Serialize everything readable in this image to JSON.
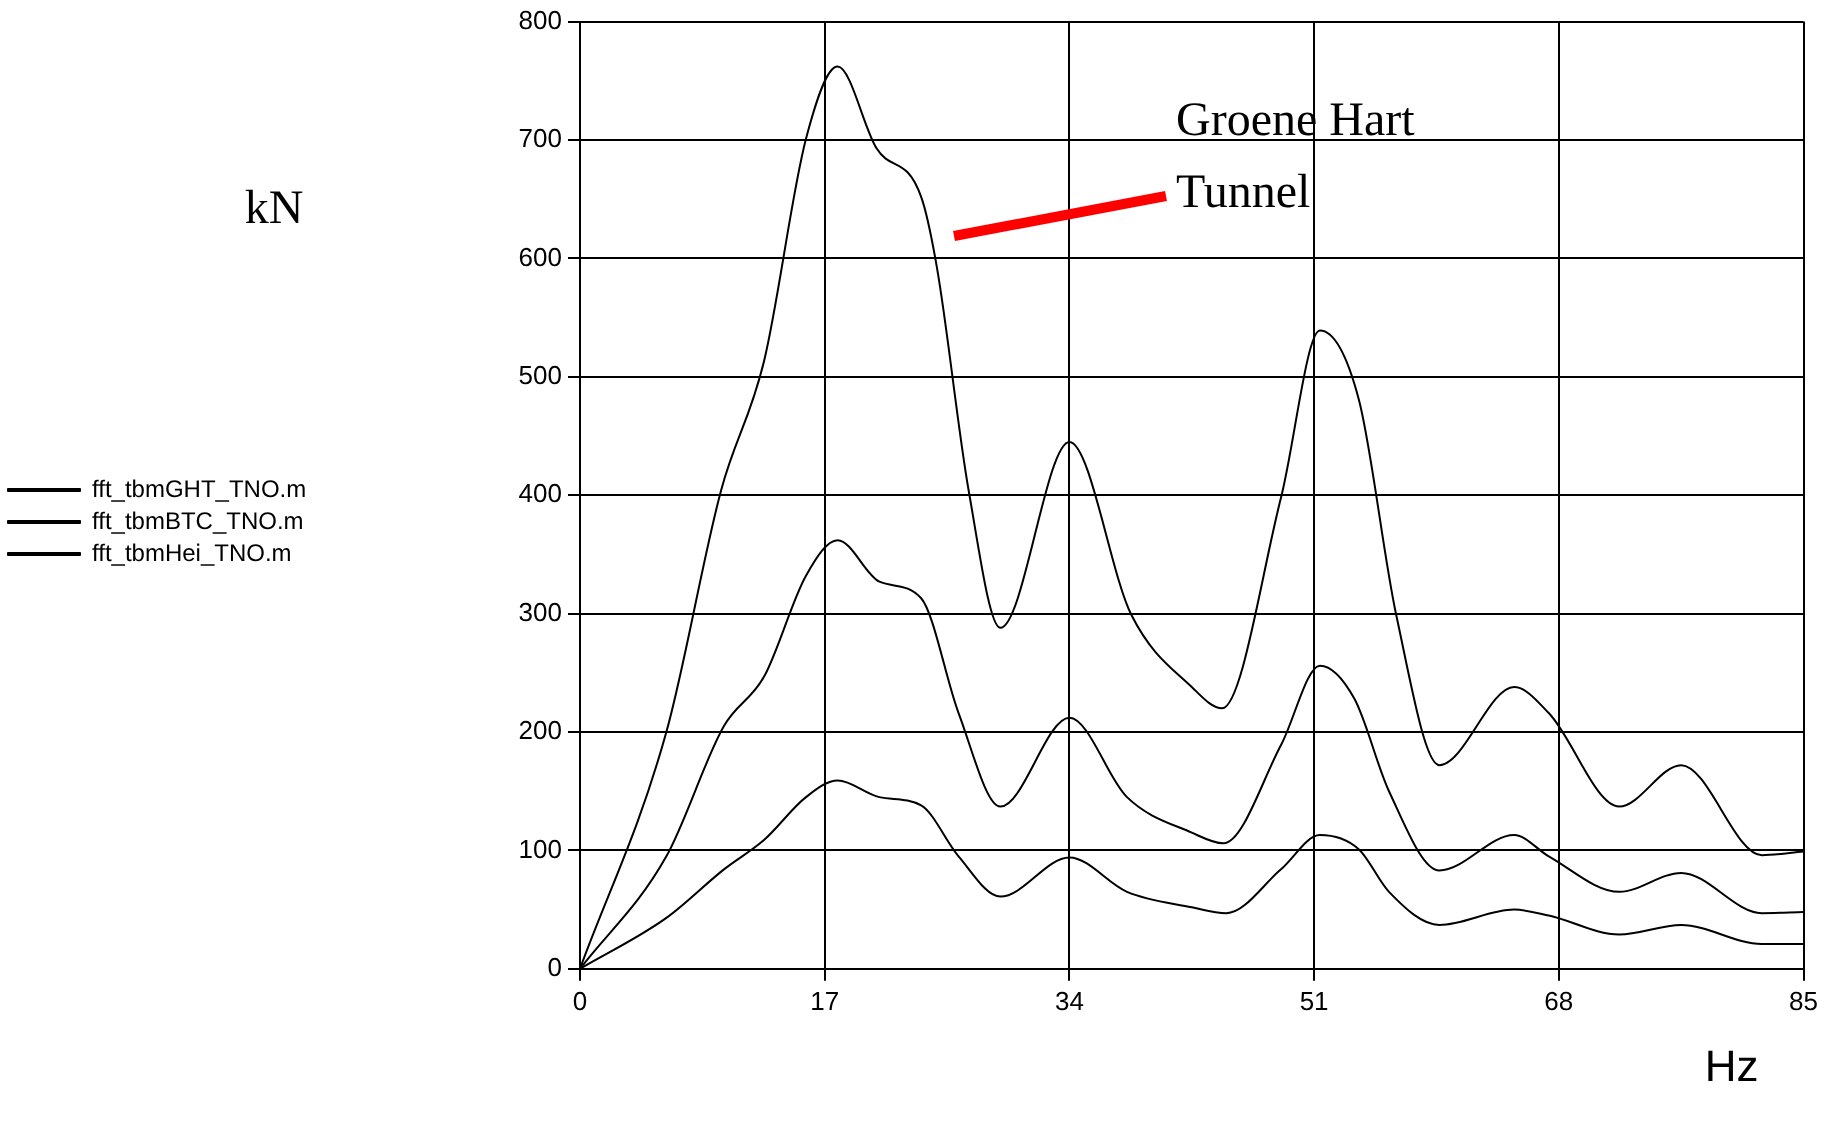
{
  "chart_data": {
    "type": "line",
    "xlabel": "Hz",
    "ylabel": "kN",
    "xlim": [
      0,
      85
    ],
    "xticks": [
      0,
      17,
      34,
      51,
      68,
      85
    ],
    "ylim": [
      0,
      800
    ],
    "yticks": [
      0,
      100,
      200,
      300,
      400,
      500,
      600,
      700,
      800
    ],
    "grid": true,
    "legend": "left",
    "marker": "none",
    "line_style": "solid",
    "annotations": [
      "Groene Hart Tunnel"
    ],
    "series": [
      {
        "name": "fft_tbmGHT_TNO.m",
        "color": "#000000",
        "x": [
          0,
          6,
          9.8,
          12.8,
          15.7,
          17.9,
          20.6,
          23.7,
          24.8,
          27,
          29.2,
          34,
          38.3,
          42.5,
          44.6,
          48.7,
          51.4,
          54.1,
          56.7,
          59.7,
          64.9,
          67.3,
          72.2,
          76.5,
          82.1,
          85
        ],
        "values": [
          0,
          200,
          404,
          514,
          701,
          762,
          693,
          652,
          592,
          404,
          288,
          445,
          299,
          238,
          220,
          398,
          539,
          481,
          299,
          172,
          238,
          216,
          137,
          172,
          96,
          99
        ]
      },
      {
        "name": "fft_tbmBTC_TNO.m",
        "color": "#000000",
        "x": [
          0,
          6,
          10,
          12.8,
          15.7,
          17.9,
          20.8,
          23.7,
          26.3,
          29.2,
          34,
          38,
          42.5,
          44.7,
          48.7,
          51.4,
          53.8,
          56.2,
          59.7,
          64.9,
          67.3,
          72.2,
          76.5,
          82.1,
          85
        ],
        "values": [
          0,
          95,
          205,
          247,
          332,
          362,
          327,
          313,
          216,
          137,
          212,
          145,
          115,
          106,
          189,
          256,
          228,
          150,
          83,
          113,
          95,
          65,
          81,
          47,
          48
        ]
      },
      {
        "name": "fft_tbmHei_TNO.m",
        "color": "#000000",
        "x": [
          0,
          6,
          10,
          12.8,
          15.7,
          17.9,
          20.8,
          23.7,
          26.3,
          29.2,
          34,
          38,
          42.5,
          44.9,
          48.7,
          51.4,
          54.1,
          56.2,
          59.7,
          64.9,
          67.3,
          72.2,
          76.5,
          82.1,
          85
        ],
        "values": [
          0,
          43,
          84,
          109,
          145,
          159,
          145,
          138,
          95,
          61,
          94,
          65,
          52,
          47,
          84,
          113,
          101,
          65,
          37,
          50,
          45,
          29,
          37,
          21,
          21
        ]
      }
    ]
  }
}
